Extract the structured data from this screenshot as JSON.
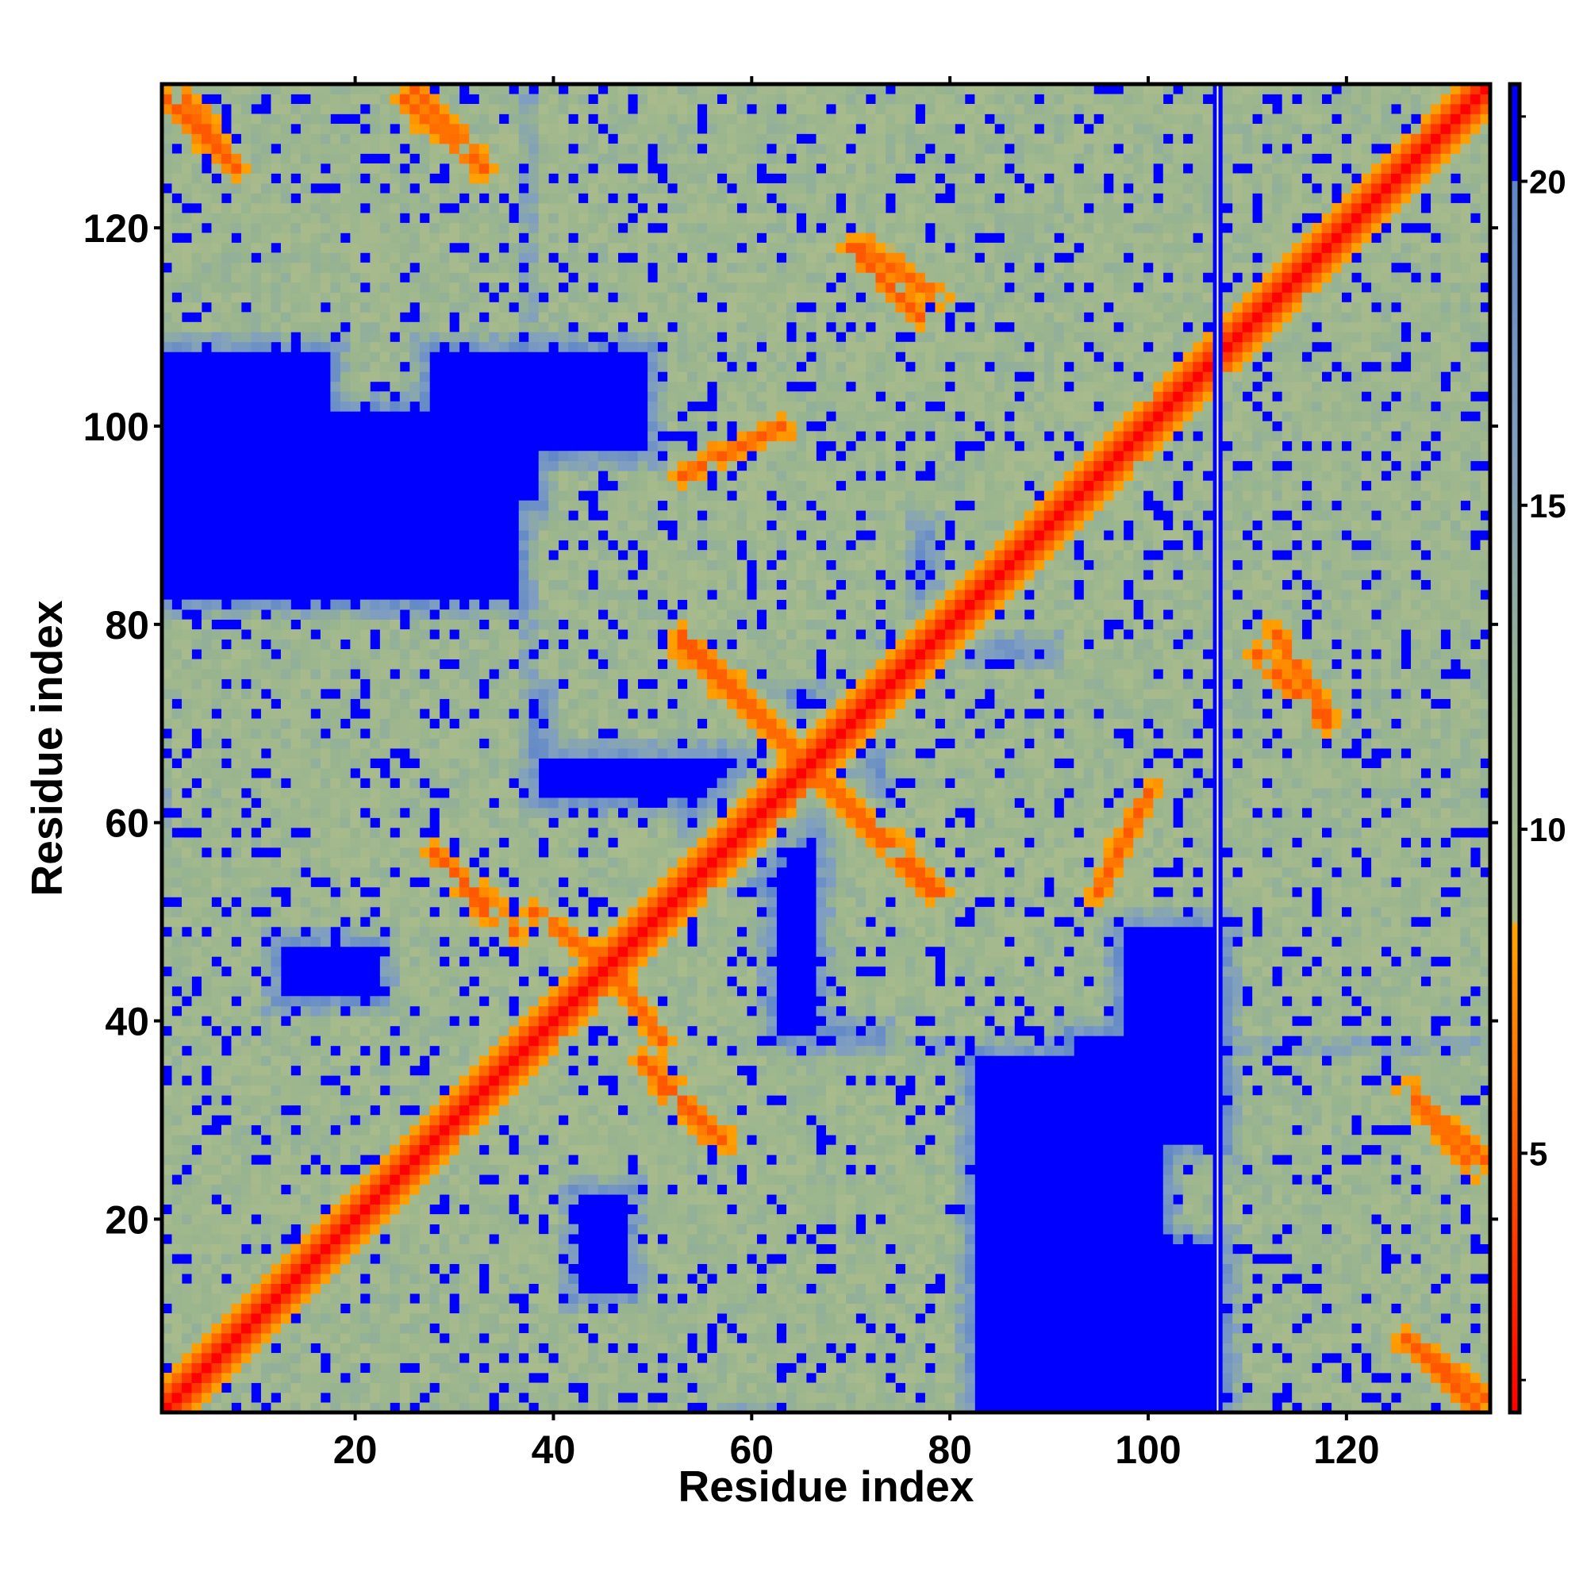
{
  "chart_data": {
    "type": "heatmap",
    "title": "",
    "xlabel": "Residue index",
    "ylabel": "Residue index",
    "n_residues": 134,
    "xlim": [
      1,
      134
    ],
    "ylim": [
      1,
      134
    ],
    "x_ticks": [
      20,
      40,
      60,
      80,
      100,
      120
    ],
    "y_ticks": [
      20,
      40,
      60,
      80,
      100,
      120
    ],
    "colorbar": {
      "ticks": [
        5,
        10,
        15,
        20
      ],
      "range": [
        1,
        21.5
      ],
      "stops": [
        {
          "value": 1.0,
          "color": "#ff0000"
        },
        {
          "value": 8.5,
          "color": "#ffa500"
        },
        {
          "value": 8.6,
          "color": "#a9bb8c"
        },
        {
          "value": 12.0,
          "color": "#98b48f"
        },
        {
          "value": 16.0,
          "color": "#7f9ec1"
        },
        {
          "value": 20.0,
          "color": "#5f86c8"
        },
        {
          "value": 20.01,
          "color": "#0000ff"
        }
      ]
    },
    "blank_column": 107,
    "contact_bands": [
      {
        "name": "diagonal",
        "from": [
          1,
          1
        ],
        "to": [
          134,
          134
        ],
        "direction": "parallel"
      },
      {
        "name": "antiparallel-a",
        "from": [
          53,
          79
        ],
        "to": [
          78,
          53
        ],
        "direction": "antiparallel"
      },
      {
        "name": "antiparallel-b",
        "from": [
          28,
          57
        ],
        "to": [
          33,
          51
        ],
        "direction": "antiparallel"
      },
      {
        "name": "antiparallel-c",
        "from": [
          49,
          36
        ],
        "to": [
          57,
          28
        ],
        "direction": "antiparallel"
      },
      {
        "name": "antiparallel-d",
        "from": [
          113,
          79
        ],
        "to": [
          118,
          71
        ],
        "direction": "antiparallel"
      },
      {
        "name": "antiparallel-e",
        "from": [
          2,
          134
        ],
        "to": [
          8,
          126
        ],
        "direction": "antiparallel"
      },
      {
        "name": "antiparallel-f",
        "from": [
          26,
          134
        ],
        "to": [
          33,
          126
        ],
        "direction": "antiparallel"
      },
      {
        "name": "antiparallel-g",
        "from": [
          126,
          33
        ],
        "to": [
          133,
          25
        ],
        "direction": "antiparallel"
      },
      {
        "name": "antiparallel-h",
        "from": [
          126,
          8
        ],
        "to": [
          133,
          1
        ],
        "direction": "antiparallel"
      },
      {
        "name": "antiparallel-i",
        "from": [
          70,
          118
        ],
        "to": [
          77,
          111
        ],
        "direction": "antiparallel"
      },
      {
        "name": "antiparallel-j",
        "from": [
          46,
          45
        ],
        "to": [
          51,
          38
        ],
        "direction": "antiparallel"
      },
      {
        "name": "parallel-k",
        "from": [
          95,
          53
        ],
        "to": [
          100,
          63
        ],
        "direction": "parallel"
      }
    ],
    "near_regions": [
      {
        "x": [
          1,
          36
        ],
        "y": [
          124,
          134
        ]
      },
      {
        "x": [
          3,
          36
        ],
        "y": [
          117,
          128
        ]
      },
      {
        "x": [
          39,
          80
        ],
        "y": [
          110,
          134
        ]
      },
      {
        "x": [
          55,
          100
        ],
        "y": [
          92,
          130
        ]
      },
      {
        "x": [
          84,
          134
        ],
        "y": [
          80,
          134
        ]
      },
      {
        "x": [
          84,
          110
        ],
        "y": [
          96,
          115
        ]
      },
      {
        "x": [
          1,
          36
        ],
        "y": [
          70,
          80
        ]
      },
      {
        "x": [
          39,
          72
        ],
        "y": [
          75,
          90
        ]
      },
      {
        "x": [
          2,
          36
        ],
        "y": [
          50,
          65
        ]
      },
      {
        "x": [
          27,
          52
        ],
        "y": [
          40,
          60
        ]
      },
      {
        "x": [
          30,
          60
        ],
        "y": [
          25,
          50
        ]
      },
      {
        "x": [
          52,
          62
        ],
        "y": [
          8,
          25
        ]
      },
      {
        "x": [
          1,
          30
        ],
        "y": [
          1,
          40
        ]
      },
      {
        "x": [
          9,
          36
        ],
        "y": [
          2,
          10
        ]
      },
      {
        "x": [
          38,
          56
        ],
        "y": [
          1,
          10
        ]
      },
      {
        "x": [
          64,
          79
        ],
        "y": [
          1,
          36
        ]
      },
      {
        "x": [
          69,
          95
        ],
        "y": [
          41,
          59
        ]
      },
      {
        "x": [
          79,
          134
        ],
        "y": [
          52,
          75
        ]
      },
      {
        "x": [
          110,
          134
        ],
        "y": [
          1,
          36
        ]
      },
      {
        "x": [
          104,
          116
        ],
        "y": [
          20,
          25
        ]
      },
      {
        "x": [
          110,
          134
        ],
        "y": [
          48,
          92
        ]
      }
    ]
  }
}
